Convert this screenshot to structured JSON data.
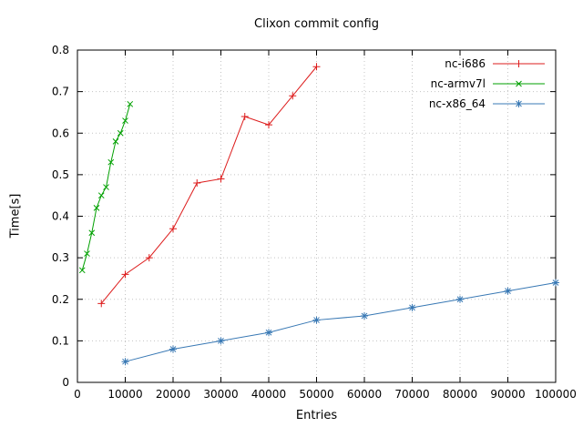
{
  "chart_data": {
    "type": "line",
    "title": "Clixon commit config",
    "xlabel": "Entries",
    "ylabel": "Time[s]",
    "xlim": [
      0,
      100000
    ],
    "ylim": [
      0,
      0.8
    ],
    "xticks": [
      0,
      10000,
      20000,
      30000,
      40000,
      50000,
      60000,
      70000,
      80000,
      90000,
      100000
    ],
    "yticks": [
      0,
      0.1,
      0.2,
      0.3,
      0.4,
      0.5,
      0.6,
      0.7,
      0.8
    ],
    "grid": true,
    "legend_position": "top-right-inside",
    "colors": {
      "axis": "#000000",
      "grid": "#c4c4c4",
      "background": "#ffffff"
    },
    "series": [
      {
        "name": "nc-i686",
        "color": "#dd1c1c",
        "marker": "plus",
        "points": [
          [
            5000,
            0.19
          ],
          [
            10000,
            0.26
          ],
          [
            15000,
            0.3
          ],
          [
            20000,
            0.37
          ],
          [
            25000,
            0.48
          ],
          [
            30000,
            0.49
          ],
          [
            35000,
            0.64
          ],
          [
            40000,
            0.62
          ],
          [
            45000,
            0.69
          ],
          [
            50000,
            0.76
          ]
        ]
      },
      {
        "name": "nc-armv7l",
        "color": "#00a000",
        "marker": "cross",
        "points": [
          [
            1000,
            0.27
          ],
          [
            2000,
            0.31
          ],
          [
            3000,
            0.36
          ],
          [
            4000,
            0.42
          ],
          [
            5000,
            0.45
          ],
          [
            6000,
            0.47
          ],
          [
            7000,
            0.53
          ],
          [
            8000,
            0.58
          ],
          [
            9000,
            0.6
          ],
          [
            10000,
            0.63
          ],
          [
            11000,
            0.67
          ]
        ]
      },
      {
        "name": "nc-x86_64",
        "color": "#3878b4",
        "marker": "star",
        "points": [
          [
            10000,
            0.05
          ],
          [
            20000,
            0.08
          ],
          [
            30000,
            0.1
          ],
          [
            40000,
            0.12
          ],
          [
            50000,
            0.15
          ],
          [
            60000,
            0.16
          ],
          [
            70000,
            0.18
          ],
          [
            80000,
            0.2
          ],
          [
            90000,
            0.22
          ],
          [
            100000,
            0.24
          ]
        ]
      }
    ]
  }
}
